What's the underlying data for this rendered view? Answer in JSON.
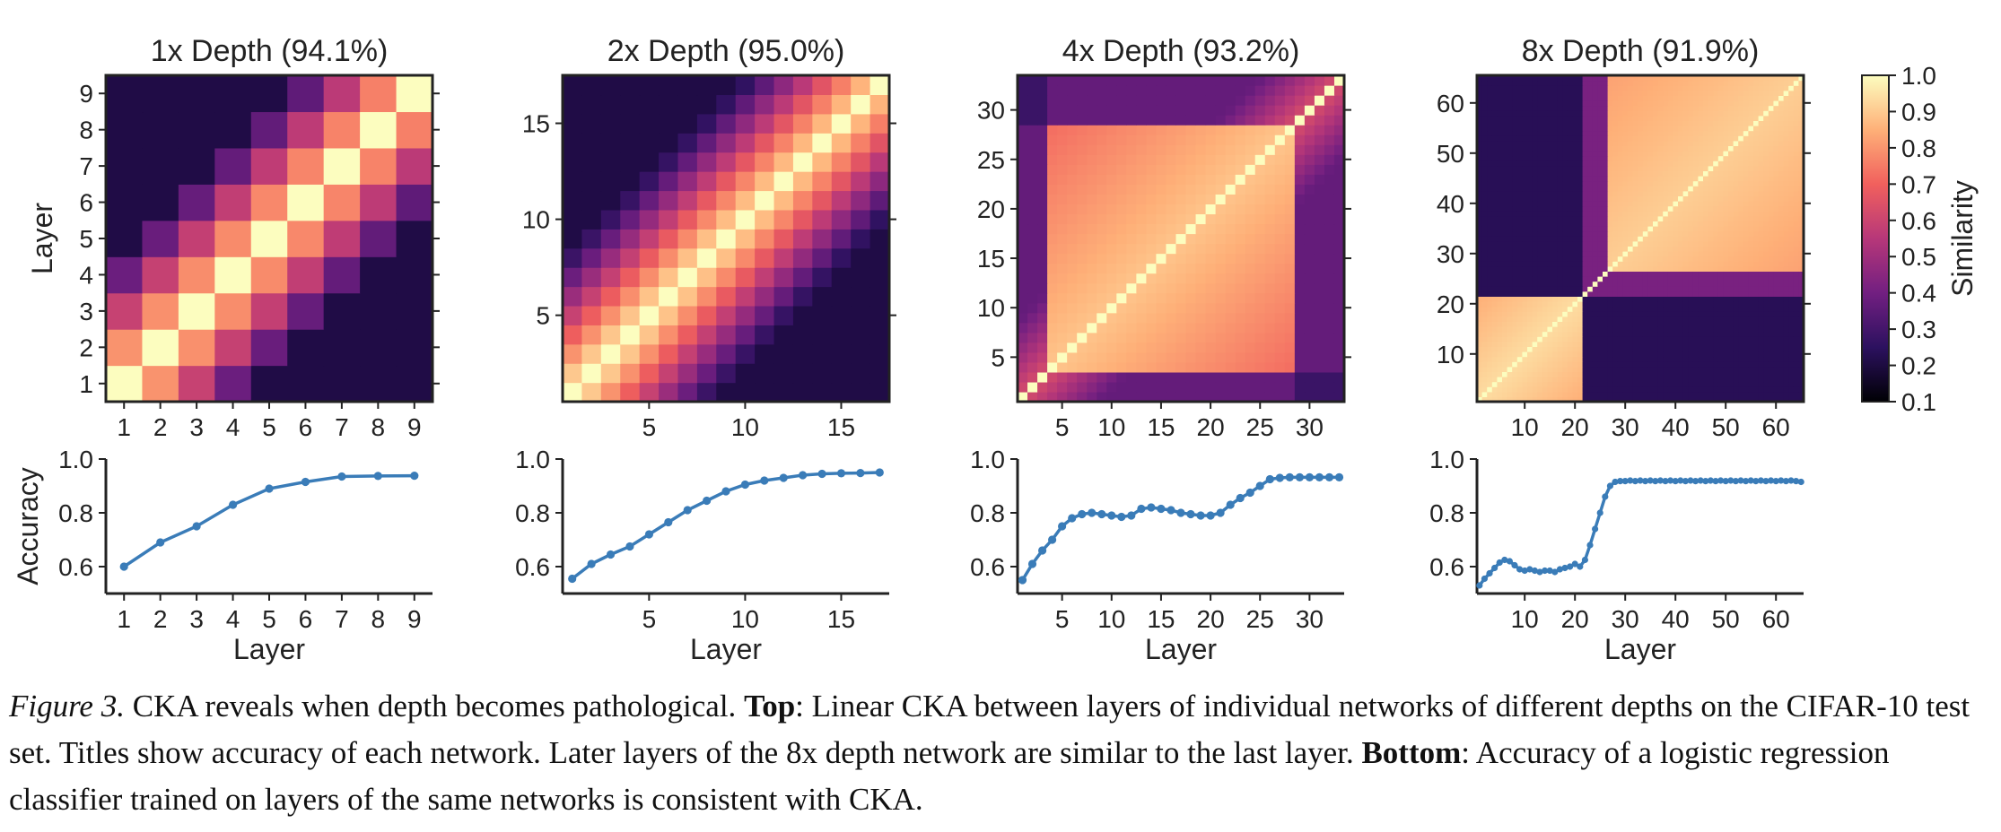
{
  "colors": {
    "line": "#3a7cb8",
    "axis": "#222222",
    "magma_stops": [
      "#000004",
      "#2c115f",
      "#721f81",
      "#b73779",
      "#f1605d",
      "#feb078",
      "#fcfdbf"
    ]
  },
  "chart_data": [
    {
      "type": "heatmap",
      "title": "1x Depth (94.1%)",
      "xlabel": "",
      "ylabel": "Layer",
      "n": 9,
      "xticks": [
        1,
        2,
        3,
        4,
        5,
        6,
        7,
        8,
        9
      ],
      "yticks": [
        1,
        2,
        3,
        4,
        5,
        6,
        7,
        8,
        9
      ],
      "pattern": "smooth-diagonal",
      "colormap": "magma",
      "value_range": [
        0.1,
        1.0
      ]
    },
    {
      "type": "heatmap",
      "title": "2x Depth (95.0%)",
      "xlabel": "",
      "ylabel": "",
      "n": 17,
      "xticks": [
        5,
        10,
        15
      ],
      "yticks": [
        5,
        10,
        15
      ],
      "pattern": "smooth-diagonal",
      "colormap": "magma",
      "value_range": [
        0.1,
        1.0
      ]
    },
    {
      "type": "heatmap",
      "title": "4x Depth (93.2%)",
      "xlabel": "",
      "ylabel": "",
      "n": 33,
      "xticks": [
        5,
        10,
        15,
        20,
        25,
        30
      ],
      "yticks": [
        5,
        10,
        15,
        20,
        25,
        30
      ],
      "pattern": "square-block",
      "colormap": "magma",
      "value_range": [
        0.1,
        1.0
      ]
    },
    {
      "type": "heatmap",
      "title": "8x Depth (91.9%)",
      "xlabel": "",
      "ylabel": "",
      "n": 65,
      "xticks": [
        10,
        20,
        30,
        40,
        50,
        60
      ],
      "yticks": [
        10,
        20,
        30,
        40,
        50,
        60
      ],
      "pattern": "two-blocks",
      "colormap": "magma",
      "value_range": [
        0.1,
        1.0
      ]
    },
    {
      "type": "line",
      "title": "",
      "xlabel": "Layer",
      "ylabel": "Accuracy",
      "xlim": [
        0.5,
        9.5
      ],
      "ylim": [
        0.5,
        1.0
      ],
      "xticks": [
        1,
        2,
        3,
        4,
        5,
        6,
        7,
        8,
        9
      ],
      "yticks": [
        0.6,
        0.8,
        1.0
      ],
      "x": [
        1,
        2,
        3,
        4,
        5,
        6,
        7,
        8,
        9
      ],
      "y": [
        0.6,
        0.69,
        0.75,
        0.83,
        0.89,
        0.915,
        0.935,
        0.937,
        0.938
      ]
    },
    {
      "type": "line",
      "title": "",
      "xlabel": "Layer",
      "ylabel": "",
      "xlim": [
        0.5,
        17.5
      ],
      "ylim": [
        0.5,
        1.0
      ],
      "xticks": [
        5,
        10,
        15
      ],
      "yticks": [
        0.6,
        0.8,
        1.0
      ],
      "x": [
        1,
        2,
        3,
        4,
        5,
        6,
        7,
        8,
        9,
        10,
        11,
        12,
        13,
        14,
        15,
        16,
        17
      ],
      "y": [
        0.555,
        0.61,
        0.645,
        0.675,
        0.72,
        0.765,
        0.81,
        0.845,
        0.88,
        0.905,
        0.92,
        0.93,
        0.94,
        0.945,
        0.947,
        0.948,
        0.95
      ]
    },
    {
      "type": "line",
      "title": "",
      "xlabel": "Layer",
      "ylabel": "",
      "xlim": [
        0.5,
        33.5
      ],
      "ylim": [
        0.5,
        1.0
      ],
      "xticks": [
        5,
        10,
        15,
        20,
        25,
        30
      ],
      "yticks": [
        0.6,
        0.8,
        1.0
      ],
      "x": [
        1,
        2,
        3,
        4,
        5,
        6,
        7,
        8,
        9,
        10,
        11,
        12,
        13,
        14,
        15,
        16,
        17,
        18,
        19,
        20,
        21,
        22,
        23,
        24,
        25,
        26,
        27,
        28,
        29,
        30,
        31,
        32,
        33
      ],
      "y": [
        0.55,
        0.61,
        0.66,
        0.7,
        0.75,
        0.78,
        0.795,
        0.8,
        0.795,
        0.79,
        0.785,
        0.79,
        0.815,
        0.82,
        0.815,
        0.81,
        0.8,
        0.795,
        0.79,
        0.79,
        0.8,
        0.83,
        0.855,
        0.875,
        0.9,
        0.925,
        0.93,
        0.932,
        0.932,
        0.932,
        0.932,
        0.932,
        0.932
      ]
    },
    {
      "type": "line",
      "title": "",
      "xlabel": "Layer",
      "ylabel": "",
      "xlim": [
        0.5,
        65.5
      ],
      "ylim": [
        0.5,
        1.0
      ],
      "xticks": [
        10,
        20,
        30,
        40,
        50,
        60
      ],
      "yticks": [
        0.6,
        0.8,
        1.0
      ],
      "x": [
        1,
        2,
        3,
        4,
        5,
        6,
        7,
        8,
        9,
        10,
        11,
        12,
        13,
        14,
        15,
        16,
        17,
        18,
        19,
        20,
        21,
        22,
        23,
        24,
        25,
        26,
        27,
        28,
        29,
        30,
        31,
        32,
        33,
        34,
        35,
        36,
        37,
        38,
        39,
        40,
        41,
        42,
        43,
        44,
        45,
        46,
        47,
        48,
        49,
        50,
        51,
        52,
        53,
        54,
        55,
        56,
        57,
        58,
        59,
        60,
        61,
        62,
        63,
        64,
        65
      ],
      "y": [
        0.53,
        0.555,
        0.575,
        0.595,
        0.615,
        0.625,
        0.62,
        0.605,
        0.59,
        0.585,
        0.59,
        0.585,
        0.58,
        0.585,
        0.585,
        0.58,
        0.59,
        0.595,
        0.6,
        0.61,
        0.6,
        0.625,
        0.68,
        0.74,
        0.8,
        0.86,
        0.9,
        0.915,
        0.918,
        0.918,
        0.92,
        0.918,
        0.92,
        0.918,
        0.92,
        0.918,
        0.92,
        0.918,
        0.92,
        0.918,
        0.92,
        0.918,
        0.92,
        0.918,
        0.92,
        0.918,
        0.92,
        0.918,
        0.92,
        0.918,
        0.92,
        0.918,
        0.92,
        0.918,
        0.92,
        0.918,
        0.92,
        0.918,
        0.92,
        0.918,
        0.92,
        0.918,
        0.92,
        0.918,
        0.915
      ]
    }
  ],
  "colorbar": {
    "label": "Similarity",
    "range": [
      0.1,
      1.0
    ],
    "ticks": [
      "1.0",
      "0.9",
      "0.8",
      "0.7",
      "0.6",
      "0.5",
      "0.4",
      "0.3",
      "0.2",
      "0.1"
    ]
  },
  "caption": {
    "figure_label": "Figure 3.",
    "intro": " CKA reveals when depth becomes pathological. ",
    "top_label": "Top",
    "top_text": ": Linear CKA between layers of individual networks of different depths on the CIFAR-10 test set. Titles show accuracy of each network. Later layers of the 8x depth network are similar to the last layer. ",
    "bottom_label": "Bottom",
    "bottom_text": ": Accuracy of a logistic regression classifier trained on layers of the same networks is consistent with CKA."
  }
}
